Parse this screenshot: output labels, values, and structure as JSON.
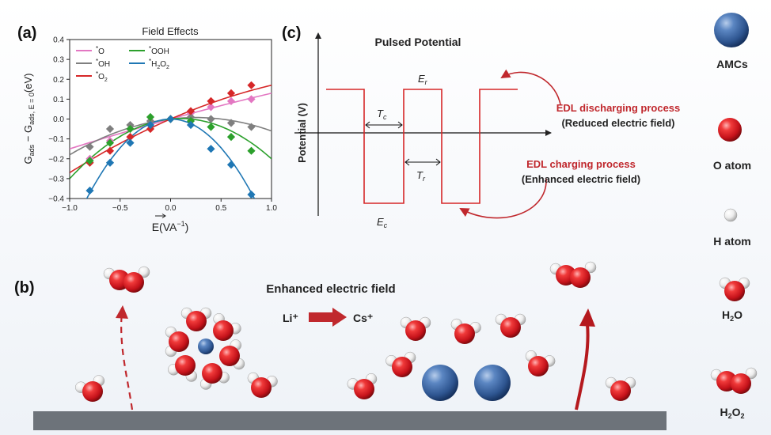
{
  "panels": {
    "a": {
      "label": "(a)"
    },
    "b": {
      "label": "(b)"
    },
    "c": {
      "label": "(c)"
    }
  },
  "chart_data": {
    "type": "line",
    "title": "Field Effects",
    "xlabel": "E(VA⁻¹)",
    "ylabel": "G_ads − G_ads,E=0 (eV)",
    "xlim": [
      -1.0,
      1.0
    ],
    "ylim": [
      -0.4,
      0.4
    ],
    "xticks": [
      -1.0,
      -0.5,
      0.0,
      0.5,
      1.0
    ],
    "yticks": [
      -0.4,
      -0.3,
      -0.2,
      -0.1,
      0.0,
      0.1,
      0.2,
      0.3,
      0.4
    ],
    "xtick_labels": [
      "−1.0",
      "−0.5",
      "0.0",
      "0.5",
      "1.0"
    ],
    "ytick_labels": [
      "−0.4",
      "−0.3",
      "−0.2",
      "−0.1",
      "0.0",
      "0.1",
      "0.2",
      "0.3",
      "0.4"
    ],
    "legend_position": "top-left",
    "series": [
      {
        "name": "*O",
        "color": "#e377c2",
        "x": [
          -0.8,
          -0.6,
          -0.4,
          -0.2,
          0.0,
          0.2,
          0.4,
          0.6,
          0.8
        ],
        "y": [
          -0.2,
          -0.11,
          -0.05,
          -0.01,
          0.0,
          0.03,
          0.06,
          0.09,
          0.1
        ],
        "curve": [
          -0.01,
          0.14,
          0.0
        ]
      },
      {
        "name": "*OH",
        "color": "#7f7f7f",
        "x": [
          -0.8,
          -0.6,
          -0.4,
          -0.2,
          0.0,
          0.2,
          0.4,
          0.6,
          0.8
        ],
        "y": [
          -0.14,
          -0.05,
          -0.03,
          -0.01,
          0.0,
          0.01,
          0.0,
          -0.02,
          -0.04
        ],
        "curve": [
          -0.12,
          0.06,
          0.0
        ]
      },
      {
        "name": "*O2",
        "color": "#d62728",
        "x": [
          -0.8,
          -0.6,
          -0.4,
          -0.2,
          0.0,
          0.2,
          0.4,
          0.6,
          0.8
        ],
        "y": [
          -0.22,
          -0.16,
          -0.09,
          -0.05,
          0.0,
          0.04,
          0.09,
          0.13,
          0.17
        ],
        "curve": [
          -0.05,
          0.22,
          0.0
        ]
      },
      {
        "name": "*OOH",
        "color": "#2ca02c",
        "x": [
          -0.8,
          -0.6,
          -0.4,
          -0.2,
          0.0,
          0.2,
          0.4,
          0.6,
          0.8
        ],
        "y": [
          -0.21,
          -0.12,
          -0.05,
          0.01,
          0.0,
          -0.01,
          -0.04,
          -0.09,
          -0.16
        ],
        "curve": [
          -0.25,
          0.05,
          0.0
        ]
      },
      {
        "name": "*H2O2",
        "color": "#1f77b4",
        "x": [
          -0.8,
          -0.6,
          -0.4,
          -0.2,
          0.0,
          0.2,
          0.4,
          0.6,
          0.8
        ],
        "y": [
          -0.36,
          -0.22,
          -0.12,
          -0.03,
          0.0,
          -0.03,
          -0.15,
          -0.23,
          -0.38
        ],
        "curve": [
          -0.58,
          0.0,
          0.0
        ]
      }
    ]
  },
  "panel_c": {
    "title": "Pulsed Potential",
    "ylabel": "Potential (V)",
    "er_label": "E",
    "er_sub": "r",
    "ec_label": "E",
    "ec_sub": "c",
    "tc_label": "T",
    "tc_sub": "c",
    "tr_label": "T",
    "tr_sub": "r",
    "discharge_title": "EDL discharging process",
    "discharge_sub": "(Reduced electric field)",
    "charge_title": "EDL charging process",
    "charge_sub": "(Enhanced electric field)",
    "line_color": "#d62728",
    "accent_color": "#c0282d"
  },
  "panel_b": {
    "title": "Enhanced electric field",
    "ion_from": "Li⁺",
    "ion_to": "Cs⁺"
  },
  "legend_right": {
    "amc": "AMCs",
    "o_atom": "O atom",
    "h_atom": "H atom",
    "h2o_base": "H",
    "h2o_sub": "2",
    "h2o_end": "O",
    "h2o2_base": "H",
    "h2o2_sub": "2",
    "h2o2_mid": "O",
    "h2o2_sub2": "2"
  },
  "colors": {
    "oxygen": "#d3161c",
    "hydrogen": "#f2f2f2",
    "amc": "#3f6aa6",
    "substrate": "#6d737a",
    "arrow": "#b5191e"
  }
}
